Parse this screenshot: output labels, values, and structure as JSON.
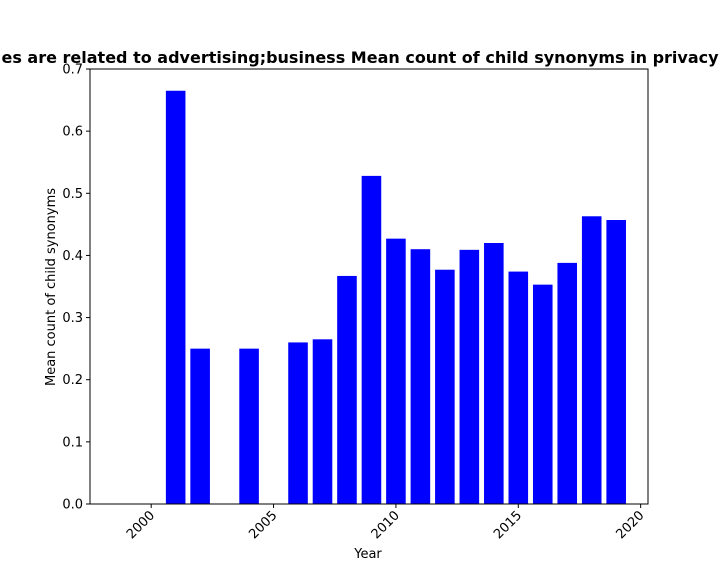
{
  "chart_data": {
    "type": "bar",
    "title": "es are related to advertising;business Mean count of child synonyms in privacy",
    "xlabel": "Year",
    "ylabel": "Mean count of child synonyms",
    "x": [
      2001,
      2002,
      2004,
      2006,
      2007,
      2008,
      2009,
      2010,
      2011,
      2012,
      2013,
      2014,
      2015,
      2016,
      2017,
      2018,
      2019
    ],
    "values": [
      0.665,
      0.25,
      0.25,
      0.26,
      0.265,
      0.367,
      0.528,
      0.427,
      0.41,
      0.377,
      0.409,
      0.42,
      0.374,
      0.353,
      0.388,
      0.463,
      0.457
    ],
    "xlim": [
      1997.5,
      2020.3
    ],
    "ylim": [
      0,
      0.7
    ],
    "xticks": [
      "2000",
      "2005",
      "2010",
      "2015",
      "2020"
    ],
    "yticks": [
      "0.0",
      "0.1",
      "0.2",
      "0.3",
      "0.4",
      "0.5",
      "0.6",
      "0.7"
    ],
    "bar_color": "#0000ff",
    "grid": false,
    "legend": "none"
  }
}
